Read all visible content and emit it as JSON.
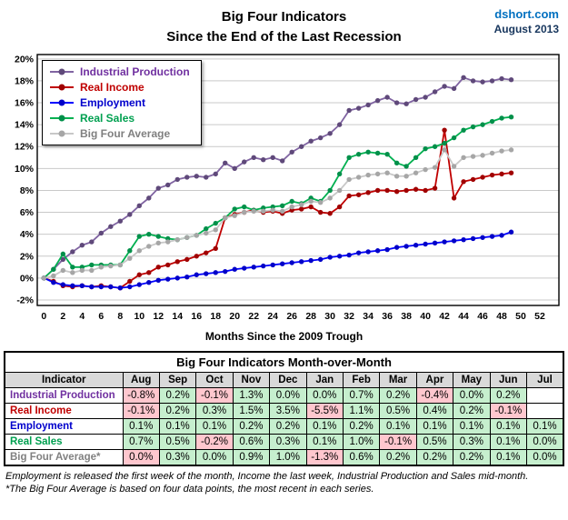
{
  "header": {
    "title_line1": "Big Four Indicators",
    "title_line2": "Since the End of the Last Recession",
    "source": "dshort.com",
    "date": "August 2013"
  },
  "chart_data": {
    "type": "line",
    "title": "Big Four Indicators Since the End of the Last Recession",
    "xlabel": "Months Since the 2009 Trough",
    "ylabel": "",
    "grid": "horizontal",
    "legend_position": "top-left",
    "xlim": [
      -0.7,
      54
    ],
    "ylim": [
      -2.5,
      20.4
    ],
    "xticks": [
      0,
      2,
      4,
      6,
      8,
      10,
      12,
      14,
      16,
      18,
      20,
      22,
      24,
      26,
      28,
      30,
      32,
      34,
      36,
      38,
      40,
      42,
      44,
      46,
      48,
      50,
      52
    ],
    "yticks": [
      -2,
      0,
      2,
      4,
      6,
      8,
      10,
      12,
      14,
      16,
      18,
      20
    ],
    "ytick_suffix": "%",
    "x": [
      0,
      1,
      2,
      3,
      4,
      5,
      6,
      7,
      8,
      9,
      10,
      11,
      12,
      13,
      14,
      15,
      16,
      17,
      18,
      19,
      20,
      21,
      22,
      23,
      24,
      25,
      26,
      27,
      28,
      29,
      30,
      31,
      32,
      33,
      34,
      35,
      36,
      37,
      38,
      39,
      40,
      41,
      42,
      43,
      44,
      45,
      46,
      47,
      48,
      49
    ],
    "series": [
      {
        "name": "Industrial Production",
        "line_color": "#8064A2",
        "marker_color": "#5F497A",
        "label_color": "#7030A0",
        "values": [
          0.0,
          0.8,
          1.7,
          2.4,
          3.0,
          3.3,
          4.1,
          4.7,
          5.2,
          5.8,
          6.6,
          7.3,
          8.2,
          8.5,
          9.0,
          9.2,
          9.3,
          9.2,
          9.5,
          10.5,
          10.0,
          10.6,
          11.0,
          10.8,
          11.0,
          10.7,
          11.5,
          12.0,
          12.5,
          12.8,
          13.2,
          14.0,
          15.3,
          15.5,
          15.8,
          16.2,
          16.5,
          16.0,
          15.9,
          16.3,
          16.5,
          17.0,
          17.5,
          17.3,
          18.3,
          18.0,
          17.9,
          18.0,
          18.2,
          18.1
        ]
      },
      {
        "name": "Real Income",
        "line_color": "#C00000",
        "marker_color": "#A00000",
        "label_color": "#C00000",
        "values": [
          0.0,
          -0.3,
          -0.7,
          -0.8,
          -0.7,
          -0.8,
          -0.7,
          -0.8,
          -0.9,
          -0.3,
          0.3,
          0.5,
          1.0,
          1.2,
          1.5,
          1.7,
          2.0,
          2.3,
          2.7,
          5.5,
          5.8,
          6.0,
          6.2,
          6.0,
          6.1,
          5.9,
          6.2,
          6.3,
          6.5,
          6.0,
          5.9,
          6.5,
          7.5,
          7.6,
          7.8,
          8.0,
          8.0,
          7.9,
          8.0,
          8.1,
          8.0,
          8.2,
          13.5,
          7.3,
          8.8,
          9.0,
          9.2,
          9.4,
          9.5,
          9.6
        ]
      },
      {
        "name": "Employment",
        "line_color": "#0000FF",
        "marker_color": "#0000C8",
        "label_color": "#0000CC",
        "values": [
          0.0,
          -0.4,
          -0.6,
          -0.7,
          -0.7,
          -0.8,
          -0.8,
          -0.8,
          -0.9,
          -0.8,
          -0.6,
          -0.4,
          -0.2,
          -0.1,
          0.0,
          0.1,
          0.3,
          0.4,
          0.5,
          0.6,
          0.8,
          0.9,
          1.0,
          1.1,
          1.2,
          1.3,
          1.4,
          1.5,
          1.6,
          1.7,
          1.9,
          2.0,
          2.1,
          2.3,
          2.4,
          2.5,
          2.6,
          2.8,
          2.9,
          3.0,
          3.1,
          3.2,
          3.3,
          3.4,
          3.5,
          3.6,
          3.7,
          3.8,
          3.9,
          4.2
        ]
      },
      {
        "name": "Real Sales",
        "line_color": "#00B050",
        "marker_color": "#00904A",
        "label_color": "#00A050",
        "values": [
          0.0,
          0.8,
          2.2,
          1.0,
          1.0,
          1.2,
          1.2,
          1.2,
          1.2,
          2.5,
          3.8,
          4.0,
          3.8,
          3.6,
          3.5,
          3.7,
          3.9,
          4.5,
          5.0,
          5.5,
          6.3,
          6.5,
          6.2,
          6.4,
          6.5,
          6.6,
          7.0,
          6.8,
          7.3,
          7.0,
          8.0,
          9.5,
          11.0,
          11.3,
          11.5,
          11.4,
          11.3,
          10.5,
          10.2,
          11.0,
          11.8,
          12.0,
          12.3,
          12.8,
          13.5,
          13.8,
          14.0,
          14.3,
          14.6,
          14.7
        ]
      },
      {
        "name": "Big Four Average",
        "line_color": "#C8C8C8",
        "marker_color": "#A6A6A6",
        "label_color": "#808080",
        "values": [
          0.0,
          0.2,
          0.7,
          0.5,
          0.7,
          0.7,
          1.0,
          1.1,
          1.2,
          1.8,
          2.5,
          2.9,
          3.2,
          3.3,
          3.5,
          3.7,
          3.9,
          4.1,
          4.4,
          5.5,
          5.7,
          6.0,
          6.1,
          6.1,
          6.2,
          6.1,
          6.5,
          6.7,
          7.0,
          6.9,
          7.3,
          8.0,
          9.0,
          9.2,
          9.4,
          9.5,
          9.6,
          9.3,
          9.3,
          9.6,
          9.9,
          10.1,
          11.7,
          10.2,
          11.0,
          11.1,
          11.2,
          11.4,
          11.6,
          11.7
        ]
      }
    ]
  },
  "table": {
    "title": "Big Four Indicators Month-over-Month",
    "columns": [
      "Indicator",
      "Aug",
      "Sep",
      "Oct",
      "Nov",
      "Dec",
      "Jan",
      "Feb",
      "Mar",
      "Apr",
      "May",
      "Jun",
      "Jul"
    ],
    "rows": [
      {
        "indicator": "Industrial Production",
        "color": "#7030A0",
        "values": [
          "-0.8%",
          "0.2%",
          "-0.1%",
          "1.3%",
          "0.0%",
          "0.0%",
          "0.7%",
          "0.2%",
          "-0.4%",
          "0.0%",
          "0.2%",
          ""
        ],
        "tones": [
          "neg",
          "pos",
          "neg",
          "pos",
          "pos",
          "pos",
          "pos",
          "pos",
          "neg",
          "pos",
          "pos",
          ""
        ]
      },
      {
        "indicator": "Real Income",
        "color": "#C00000",
        "values": [
          "-0.1%",
          "0.2%",
          "0.3%",
          "1.5%",
          "3.5%",
          "-5.5%",
          "1.1%",
          "0.5%",
          "0.4%",
          "0.2%",
          "-0.1%",
          ""
        ],
        "tones": [
          "neg",
          "pos",
          "pos",
          "pos",
          "pos",
          "neg",
          "pos",
          "pos",
          "pos",
          "pos",
          "neg",
          ""
        ]
      },
      {
        "indicator": "Employment",
        "color": "#0000CC",
        "values": [
          "0.1%",
          "0.1%",
          "0.1%",
          "0.2%",
          "0.2%",
          "0.1%",
          "0.2%",
          "0.1%",
          "0.1%",
          "0.1%",
          "0.1%",
          "0.1%"
        ],
        "tones": [
          "pos",
          "pos",
          "pos",
          "pos",
          "pos",
          "pos",
          "pos",
          "pos",
          "pos",
          "pos",
          "pos",
          "pos"
        ]
      },
      {
        "indicator": "Real Sales",
        "color": "#00A050",
        "values": [
          "0.7%",
          "0.5%",
          "-0.2%",
          "0.6%",
          "0.3%",
          "0.1%",
          "1.0%",
          "-0.1%",
          "0.5%",
          "0.3%",
          "0.1%",
          "0.0%"
        ],
        "tones": [
          "pos",
          "pos",
          "neg",
          "pos",
          "pos",
          "pos",
          "pos",
          "neg",
          "pos",
          "pos",
          "pos",
          "pos"
        ]
      },
      {
        "indicator": "Big Four Average*",
        "color": "#808080",
        "values": [
          "0.0%",
          "0.3%",
          "0.0%",
          "0.9%",
          "1.0%",
          "-1.3%",
          "0.6%",
          "0.2%",
          "0.2%",
          "0.2%",
          "0.1%",
          "0.0%"
        ],
        "tones": [
          "neg",
          "pos",
          "pos",
          "pos",
          "pos",
          "neg",
          "pos",
          "pos",
          "pos",
          "pos",
          "pos",
          "pos"
        ]
      }
    ]
  },
  "footnotes": {
    "line1": "Employment is released the first week of the month, Income the last week, Industrial Production and Sales mid-month.",
    "line2": "*The Big Four Average is based on four data points, the most recent in each series."
  }
}
